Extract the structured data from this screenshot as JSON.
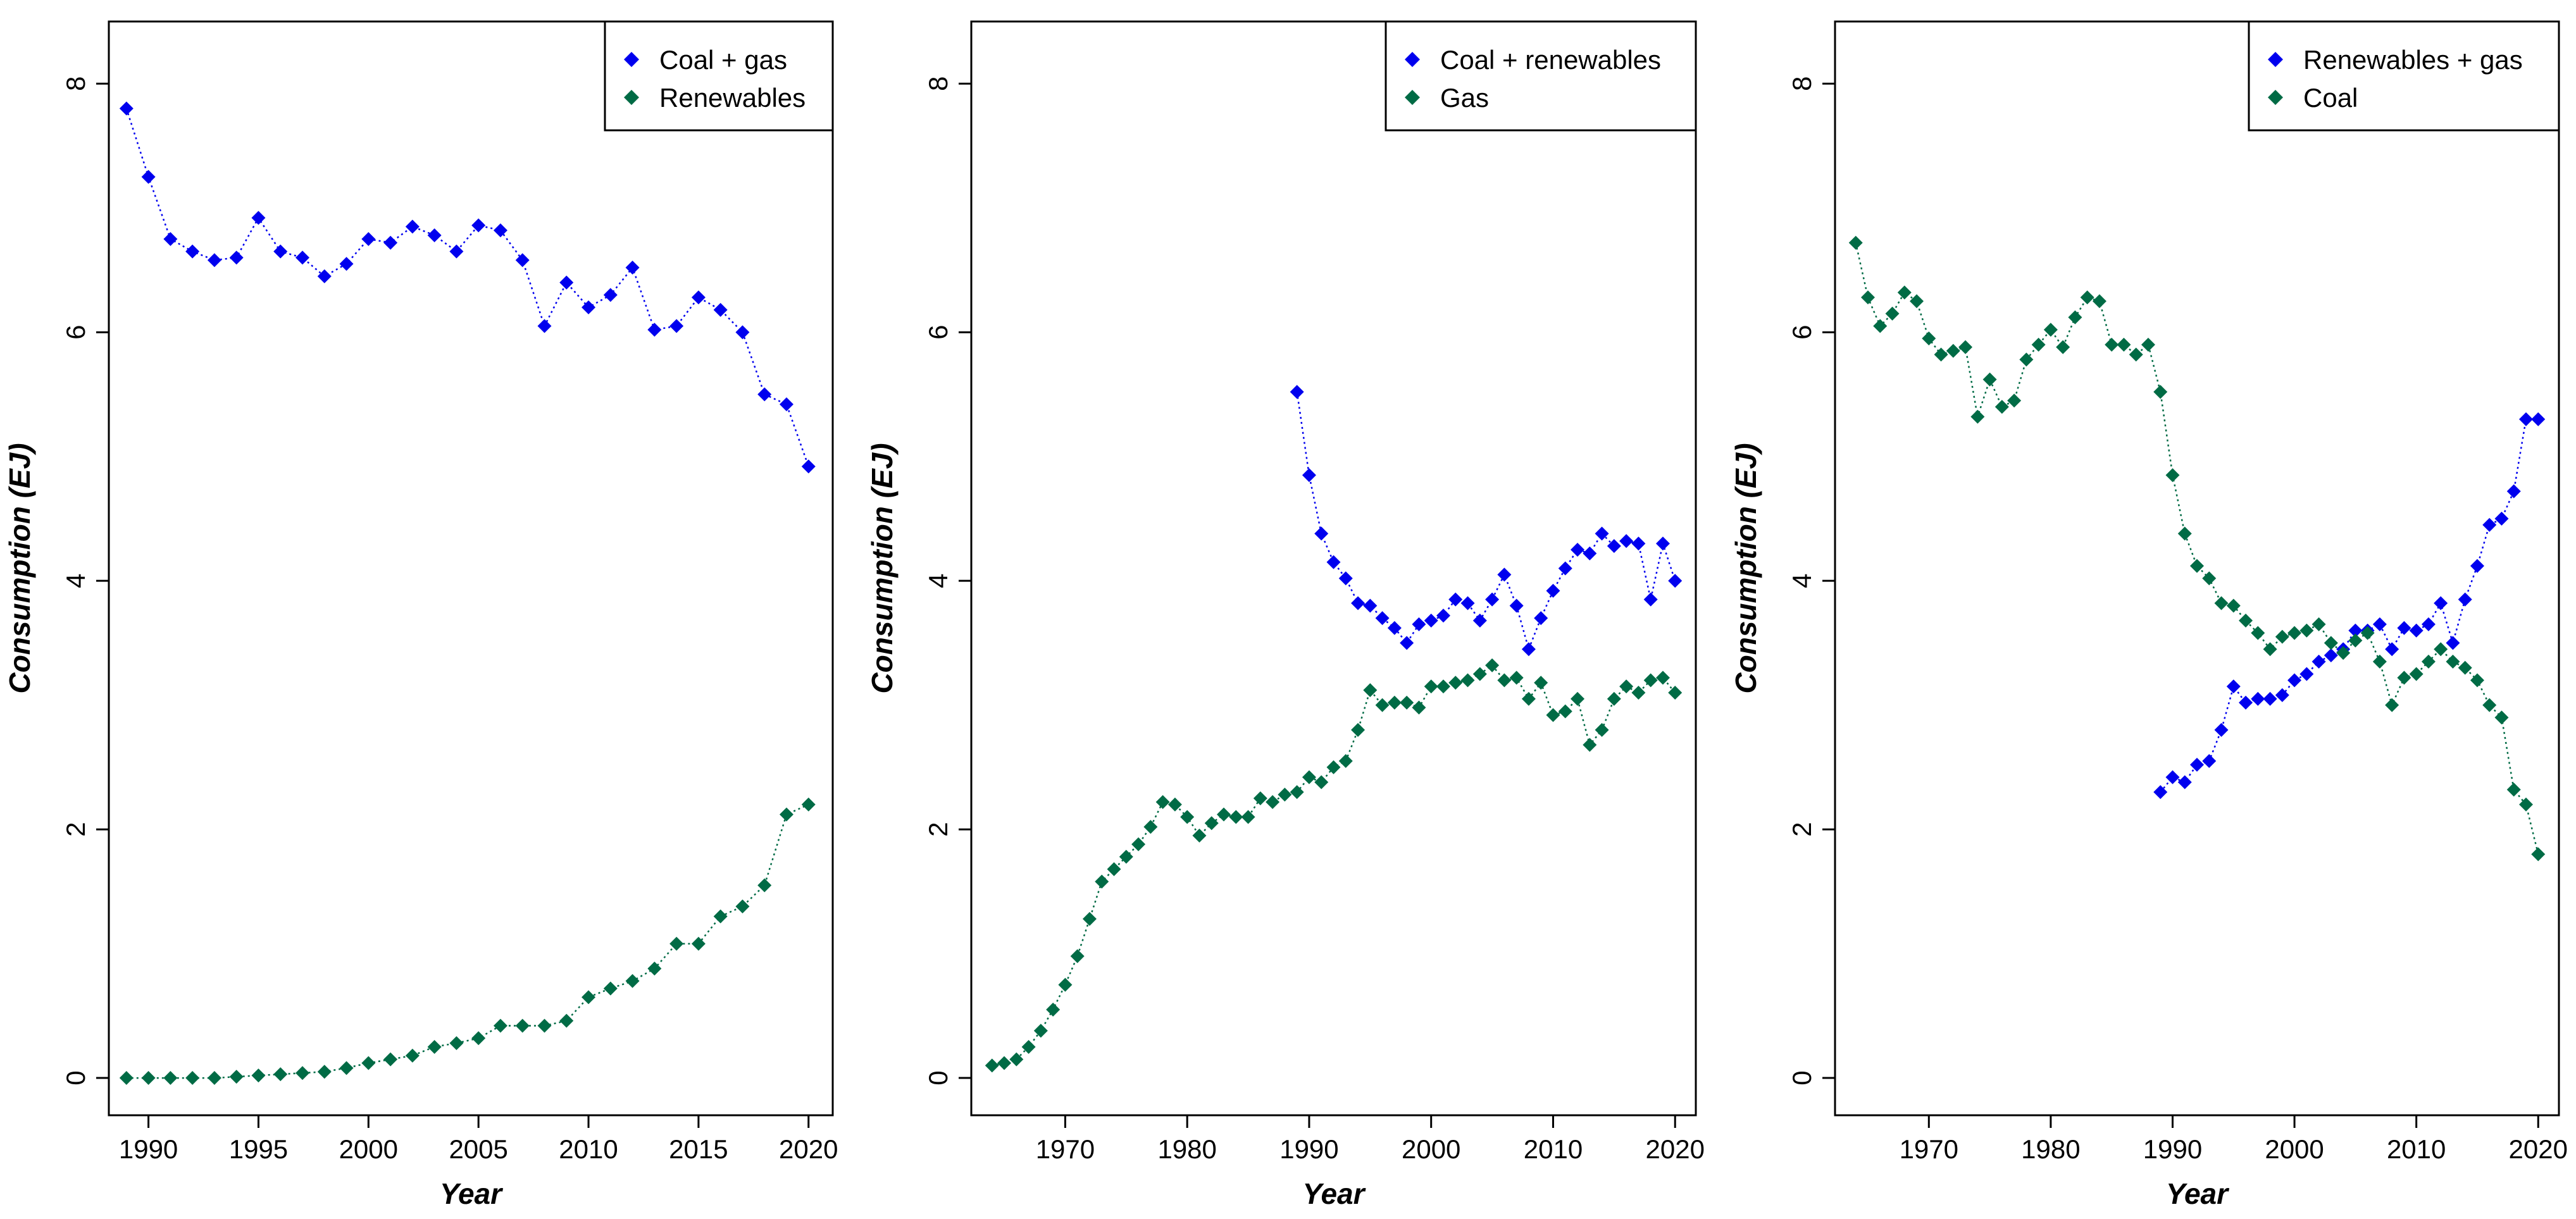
{
  "colors": {
    "series1": "#0000ee",
    "series2": "#006b45",
    "axis": "#000000"
  },
  "chart_data": [
    {
      "type": "scatter",
      "xlabel": "Year",
      "ylabel": "Consumption (EJ)",
      "xlim": [
        1988.2,
        2021.1
      ],
      "ylim": [
        -0.3,
        8.5
      ],
      "xticks": [
        1990,
        1995,
        2000,
        2005,
        2010,
        2015,
        2020
      ],
      "yticks": [
        0,
        2,
        4,
        6,
        8
      ],
      "legend_position": "top-right",
      "series": [
        {
          "name": "Coal + gas",
          "x": [
            1989,
            1990,
            1991,
            1992,
            1993,
            1994,
            1995,
            1996,
            1997,
            1998,
            1999,
            2000,
            2001,
            2002,
            2003,
            2004,
            2005,
            2006,
            2007,
            2008,
            2009,
            2010,
            2011,
            2012,
            2013,
            2014,
            2015,
            2016,
            2017,
            2018,
            2019,
            2020
          ],
          "y": [
            7.8,
            7.25,
            6.75,
            6.65,
            6.58,
            6.6,
            6.92,
            6.65,
            6.6,
            6.45,
            6.55,
            6.75,
            6.72,
            6.85,
            6.78,
            6.65,
            6.86,
            6.82,
            6.58,
            6.05,
            6.4,
            6.2,
            6.3,
            6.52,
            6.02,
            6.05,
            6.28,
            6.18,
            6.0,
            5.5,
            5.42,
            4.92
          ]
        },
        {
          "name": "Renewables",
          "x": [
            1989,
            1990,
            1991,
            1992,
            1993,
            1994,
            1995,
            1996,
            1997,
            1998,
            1999,
            2000,
            2001,
            2002,
            2003,
            2004,
            2005,
            2006,
            2007,
            2008,
            2009,
            2010,
            2011,
            2012,
            2013,
            2014,
            2015,
            2016,
            2017,
            2018,
            2019,
            2020
          ],
          "y": [
            0.0,
            0.0,
            0.0,
            0.0,
            0.0,
            0.01,
            0.02,
            0.03,
            0.04,
            0.05,
            0.08,
            0.12,
            0.15,
            0.18,
            0.25,
            0.28,
            0.32,
            0.42,
            0.42,
            0.42,
            0.46,
            0.65,
            0.72,
            0.78,
            0.88,
            1.08,
            1.08,
            1.3,
            1.38,
            1.55,
            2.12,
            2.2
          ]
        }
      ]
    },
    {
      "type": "scatter",
      "xlabel": "Year",
      "ylabel": "Consumption (EJ)",
      "xlim": [
        1962.3,
        2021.7
      ],
      "ylim": [
        -0.3,
        8.5
      ],
      "xticks": [
        1970,
        1980,
        1990,
        2000,
        2010,
        2020
      ],
      "yticks": [
        0,
        2,
        4,
        6,
        8
      ],
      "legend_position": "top-right",
      "series": [
        {
          "name": "Coal + renewables",
          "x": [
            1989,
            1990,
            1991,
            1992,
            1993,
            1994,
            1995,
            1996,
            1997,
            1998,
            1999,
            2000,
            2001,
            2002,
            2003,
            2004,
            2005,
            2006,
            2007,
            2008,
            2009,
            2010,
            2011,
            2012,
            2013,
            2014,
            2015,
            2016,
            2017,
            2018,
            2019,
            2020
          ],
          "y": [
            5.52,
            4.85,
            4.38,
            4.15,
            4.02,
            3.82,
            3.8,
            3.7,
            3.62,
            3.5,
            3.65,
            3.68,
            3.72,
            3.85,
            3.82,
            3.68,
            3.85,
            4.05,
            3.8,
            3.45,
            3.7,
            3.92,
            4.1,
            4.25,
            4.22,
            4.38,
            4.28,
            4.32,
            4.3,
            3.85,
            4.3,
            4.0
          ]
        },
        {
          "name": "Gas",
          "x": [
            1964,
            1965,
            1966,
            1967,
            1968,
            1969,
            1970,
            1971,
            1972,
            1973,
            1974,
            1975,
            1976,
            1977,
            1978,
            1979,
            1980,
            1981,
            1982,
            1983,
            1984,
            1985,
            1986,
            1987,
            1988,
            1989,
            1990,
            1991,
            1992,
            1993,
            1994,
            1995,
            1996,
            1997,
            1998,
            1999,
            2000,
            2001,
            2002,
            2003,
            2004,
            2005,
            2006,
            2007,
            2008,
            2009,
            2010,
            2011,
            2012,
            2013,
            2014,
            2015,
            2016,
            2017,
            2018,
            2019,
            2020
          ],
          "y": [
            0.1,
            0.12,
            0.15,
            0.25,
            0.38,
            0.55,
            0.75,
            0.98,
            1.28,
            1.58,
            1.68,
            1.78,
            1.88,
            2.02,
            2.22,
            2.2,
            2.1,
            1.95,
            2.05,
            2.12,
            2.1,
            2.1,
            2.25,
            2.22,
            2.28,
            2.3,
            2.42,
            2.38,
            2.5,
            2.55,
            2.8,
            3.12,
            3.0,
            3.02,
            3.02,
            2.98,
            3.15,
            3.15,
            3.18,
            3.2,
            3.25,
            3.32,
            3.2,
            3.22,
            3.05,
            3.18,
            2.92,
            2.95,
            3.05,
            2.68,
            2.8,
            3.05,
            3.15,
            3.1,
            3.2,
            3.22,
            3.1
          ]
        }
      ]
    },
    {
      "type": "scatter",
      "xlabel": "Year",
      "ylabel": "Consumption (EJ)",
      "xlim": [
        1962.3,
        2021.7
      ],
      "ylim": [
        -0.3,
        8.5
      ],
      "xticks": [
        1970,
        1980,
        1990,
        2000,
        2010,
        2020
      ],
      "yticks": [
        0,
        2,
        4,
        6,
        8
      ],
      "legend_position": "top-right",
      "series": [
        {
          "name": "Renewables + gas",
          "x": [
            1989,
            1990,
            1991,
            1992,
            1993,
            1994,
            1995,
            1996,
            1997,
            1998,
            1999,
            2000,
            2001,
            2002,
            2003,
            2004,
            2005,
            2006,
            2007,
            2008,
            2009,
            2010,
            2011,
            2012,
            2013,
            2014,
            2015,
            2016,
            2017,
            2018,
            2019,
            2020
          ],
          "y": [
            2.3,
            2.42,
            2.38,
            2.52,
            2.55,
            2.8,
            3.15,
            3.02,
            3.05,
            3.05,
            3.08,
            3.2,
            3.25,
            3.35,
            3.4,
            3.45,
            3.6,
            3.6,
            3.65,
            3.45,
            3.62,
            3.6,
            3.65,
            3.82,
            3.5,
            3.85,
            4.12,
            4.45,
            4.5,
            4.72,
            5.3,
            5.3
          ]
        },
        {
          "name": "Coal",
          "x": [
            1964,
            1965,
            1966,
            1967,
            1968,
            1969,
            1970,
            1971,
            1972,
            1973,
            1974,
            1975,
            1976,
            1977,
            1978,
            1979,
            1980,
            1981,
            1982,
            1983,
            1984,
            1985,
            1986,
            1987,
            1988,
            1989,
            1990,
            1991,
            1992,
            1993,
            1994,
            1995,
            1996,
            1997,
            1998,
            1999,
            2000,
            2001,
            2002,
            2003,
            2004,
            2005,
            2006,
            2007,
            2008,
            2009,
            2010,
            2011,
            2012,
            2013,
            2014,
            2015,
            2016,
            2017,
            2018,
            2019,
            2020
          ],
          "y": [
            6.72,
            6.28,
            6.05,
            6.15,
            6.32,
            6.25,
            5.95,
            5.82,
            5.85,
            5.88,
            5.32,
            5.62,
            5.4,
            5.45,
            5.78,
            5.9,
            6.02,
            5.88,
            6.12,
            6.28,
            6.25,
            5.9,
            5.9,
            5.82,
            5.9,
            5.52,
            4.85,
            4.38,
            4.12,
            4.02,
            3.82,
            3.8,
            3.68,
            3.58,
            3.45,
            3.55,
            3.58,
            3.6,
            3.65,
            3.5,
            3.42,
            3.52,
            3.58,
            3.35,
            3.0,
            3.22,
            3.25,
            3.35,
            3.45,
            3.35,
            3.3,
            3.2,
            3.0,
            2.9,
            2.32,
            2.2,
            1.8
          ]
        }
      ]
    }
  ]
}
